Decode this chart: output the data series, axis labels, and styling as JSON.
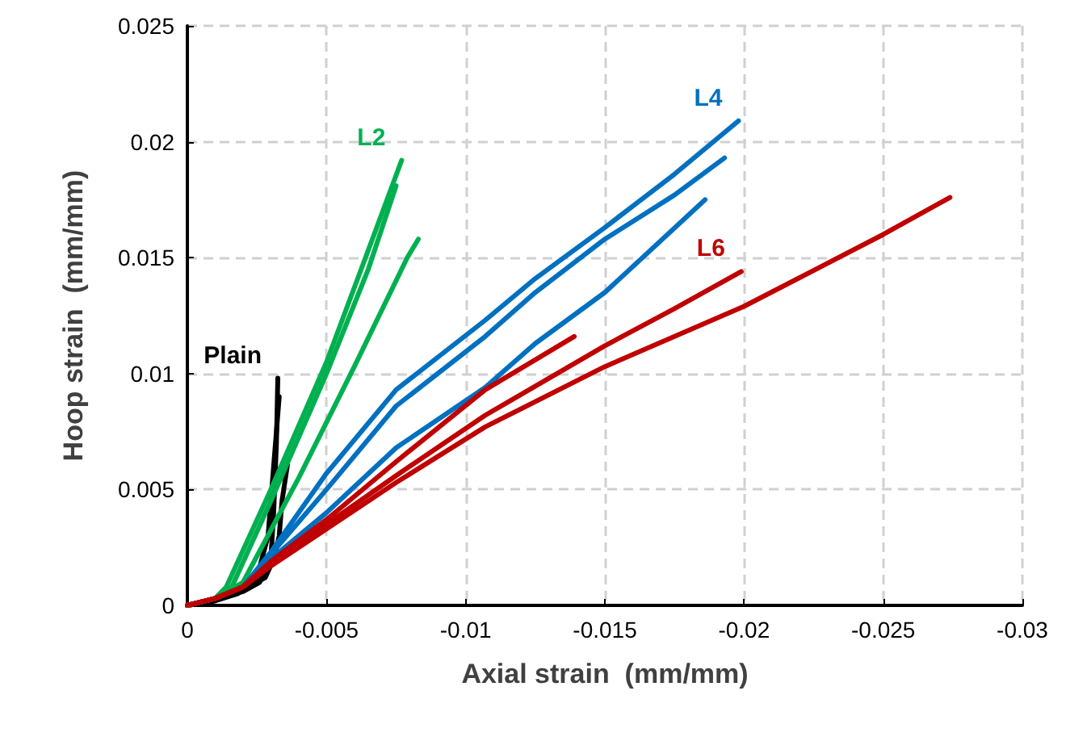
{
  "chart_data": {
    "type": "line",
    "xlabel": "Axial strain  (mm/mm)",
    "ylabel": "Hoop strain  (mm/mm)",
    "xlim": [
      0,
      -0.03
    ],
    "xticks": [
      0,
      -0.005,
      -0.01,
      -0.015,
      -0.02,
      -0.025,
      -0.03
    ],
    "ylim": [
      0,
      0.025
    ],
    "yticks": [
      0,
      0.005,
      0.01,
      0.015,
      0.02,
      0.025
    ],
    "grid": true,
    "marker": "none",
    "line_style": "solid",
    "series": [
      {
        "name": "Plain",
        "color": "#000000",
        "x": [
          0,
          -0.001,
          -0.002,
          -0.0026,
          -0.003,
          -0.0031,
          -0.0032,
          -0.00325
        ],
        "values": [
          0,
          0.0002,
          0.0006,
          0.001,
          0.002,
          0.004,
          0.007,
          0.0098
        ]
      },
      {
        "color": "#000000",
        "x": [
          0,
          -0.001,
          -0.002,
          -0.0028,
          -0.0031,
          -0.0033,
          -0.0034,
          -0.0036
        ],
        "values": [
          0,
          0.0003,
          0.0007,
          0.0012,
          0.002,
          0.003,
          0.0045,
          0.0061
        ]
      },
      {
        "color": "#000000",
        "x": [
          0,
          -0.001,
          -0.0018,
          -0.0025,
          -0.0029,
          -0.0031,
          -0.0033
        ],
        "values": [
          0,
          0.0002,
          0.0005,
          0.0012,
          0.003,
          0.006,
          0.009
        ]
      },
      {
        "name": "L2",
        "color": "#00b050",
        "x": [
          0,
          -0.001,
          -0.0014,
          -0.003,
          -0.005,
          -0.0064,
          -0.0077
        ],
        "values": [
          0,
          0.0003,
          0.0008,
          0.005,
          0.0105,
          0.015,
          0.0192
        ]
      },
      {
        "color": "#00b050",
        "x": [
          0,
          -0.001,
          -0.0016,
          -0.003,
          -0.005,
          -0.0065,
          -0.0075
        ],
        "values": [
          0,
          0.0003,
          0.0008,
          0.0045,
          0.01,
          0.0145,
          0.0181
        ]
      },
      {
        "color": "#00b050",
        "x": [
          0,
          -0.001,
          -0.002,
          -0.004,
          -0.006,
          -0.0079,
          -0.0083
        ],
        "values": [
          0,
          0.0003,
          0.001,
          0.0055,
          0.0103,
          0.015,
          0.0158
        ]
      },
      {
        "name": "L4",
        "color": "#0070c0",
        "x": [
          0,
          -0.001,
          -0.002,
          -0.003,
          -0.005,
          -0.0075,
          -0.0107,
          -0.0125,
          -0.015,
          -0.0175,
          -0.0198
        ],
        "values": [
          0,
          0.0003,
          0.0008,
          0.0023,
          0.0057,
          0.0093,
          0.0123,
          0.0141,
          0.0163,
          0.0186,
          0.0209
        ]
      },
      {
        "color": "#0070c0",
        "x": [
          0,
          -0.001,
          -0.002,
          -0.003,
          -0.005,
          -0.0075,
          -0.0107,
          -0.0125,
          -0.015,
          -0.0175,
          -0.0193
        ],
        "values": [
          0,
          0.0003,
          0.0008,
          0.0022,
          0.005,
          0.0086,
          0.0116,
          0.0135,
          0.0158,
          0.0177,
          0.0193
        ]
      },
      {
        "color": "#0070c0",
        "x": [
          0,
          -0.001,
          -0.002,
          -0.003,
          -0.005,
          -0.0075,
          -0.0107,
          -0.0125,
          -0.015,
          -0.0186
        ],
        "values": [
          0,
          0.0003,
          0.0008,
          0.002,
          0.004,
          0.0068,
          0.0094,
          0.0113,
          0.0135,
          0.0175
        ]
      },
      {
        "color": "#c00000",
        "x": [
          0,
          -0.001,
          -0.002,
          -0.003,
          -0.005,
          -0.0075,
          -0.0107,
          -0.0139
        ],
        "values": [
          0,
          0.0003,
          0.0008,
          0.0019,
          0.0037,
          0.0062,
          0.0093,
          0.0116
        ]
      },
      {
        "name": "L6",
        "color": "#c00000",
        "x": [
          0,
          -0.001,
          -0.002,
          -0.003,
          -0.005,
          -0.0075,
          -0.0107,
          -0.015,
          -0.0175,
          -0.0199
        ],
        "values": [
          0,
          0.0003,
          0.0008,
          0.0018,
          0.0035,
          0.0056,
          0.0082,
          0.0112,
          0.0128,
          0.0144
        ]
      },
      {
        "color": "#c00000",
        "x": [
          0,
          -0.001,
          -0.002,
          -0.003,
          -0.005,
          -0.0075,
          -0.0107,
          -0.015,
          -0.02,
          -0.025,
          -0.0274
        ],
        "values": [
          0,
          0.0003,
          0.0008,
          0.0017,
          0.0033,
          0.0053,
          0.0077,
          0.0103,
          0.0129,
          0.016,
          0.0176
        ]
      }
    ]
  }
}
